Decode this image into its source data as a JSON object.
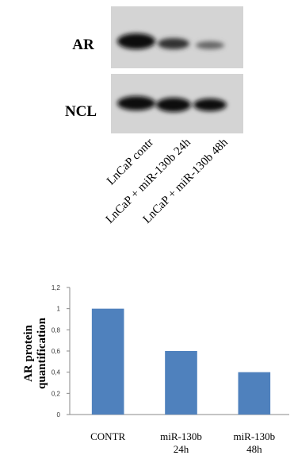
{
  "blot": {
    "rows": [
      "AR",
      "NCL"
    ],
    "lanes": [
      "LnCaP contr",
      "LnCaP + miR-130b 24h",
      "LnCaP + miR-130b 48h"
    ]
  },
  "chart_data": {
    "type": "bar",
    "y_label": "AR protein\nquantification",
    "categories": [
      "CONTR",
      "miR-130b\n24h",
      "miR-130b\n48h"
    ],
    "values": [
      1,
      0.6,
      0.4
    ],
    "color": "#4f81bd",
    "ylim": [
      0,
      1.2
    ],
    "yticks": [
      0,
      {
        "value": 0.2,
        "label": "0,2"
      },
      {
        "value": 0.4,
        "label": "0,4"
      },
      {
        "value": 0.6,
        "label": "0,6"
      },
      {
        "value": 0.8,
        "label": "0,8"
      },
      1,
      {
        "value": 1.2,
        "label": "1,2"
      }
    ]
  }
}
